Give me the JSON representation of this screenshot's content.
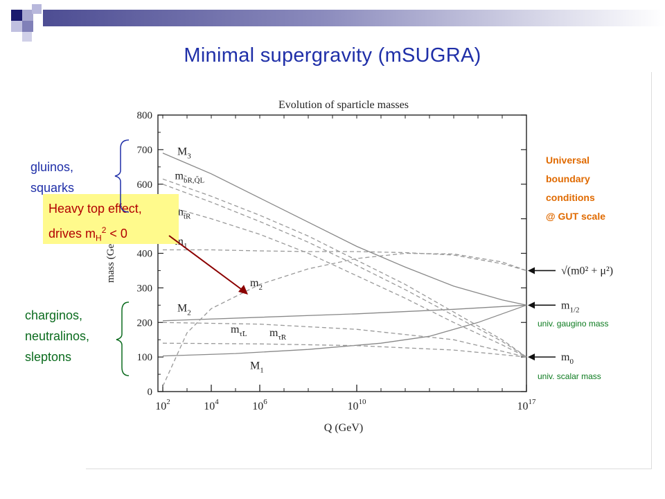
{
  "slide": {
    "title": "Minimal supergravity (mSUGRA)",
    "accent_color": "#1f2fa8"
  },
  "annotations": {
    "gluinos_line1": "gluinos,",
    "gluinos_line2": "squarks",
    "heavy_top_line1": "Heavy top effect,",
    "heavy_top_line2_pre": "drives m",
    "heavy_top_sub": "H",
    "heavy_top_sup": "2",
    "heavy_top_line2_post": " < 0",
    "charginos_line1": "charginos,",
    "charginos_line2": "neutralinos,",
    "charginos_line3": "sleptons",
    "universal_line1": "Universal",
    "universal_line2": "boundary",
    "universal_line3": "conditions",
    "universal_line4": "@ GUT scale",
    "gaugino_note": "univ. gaugino mass",
    "scalar_note": "univ. scalar mass"
  },
  "chart_data": {
    "type": "line",
    "title": "Evolution of sparticle masses",
    "xlabel": "Q (GeV)",
    "ylabel": "mass (GeV)",
    "x_scale": "log",
    "x_ticks": [
      {
        "value": 100,
        "base": "10",
        "exp": "2"
      },
      {
        "value": 10000,
        "base": "10",
        "exp": "4"
      },
      {
        "value": 1000000,
        "base": "10",
        "exp": "6"
      },
      {
        "value": 10000000000,
        "base": "10",
        "exp": "10"
      },
      {
        "value": 100000000000000000,
        "base": "10",
        "exp": "17"
      }
    ],
    "xlim_log10": [
      1.8,
      17.0
    ],
    "ylim": [
      0,
      800
    ],
    "y_ticks": [
      0,
      100,
      200,
      300,
      400,
      500,
      600,
      700,
      800
    ],
    "grid": false,
    "series": [
      {
        "name": "M3",
        "style": "solid",
        "color": "#888888",
        "points": [
          [
            2,
            690
          ],
          [
            4,
            630
          ],
          [
            6,
            560
          ],
          [
            8,
            490
          ],
          [
            10,
            420
          ],
          [
            12,
            360
          ],
          [
            14,
            305
          ],
          [
            16,
            265
          ],
          [
            17,
            250
          ]
        ]
      },
      {
        "name": "M2",
        "style": "solid",
        "color": "#888888",
        "points": [
          [
            2,
            205
          ],
          [
            6,
            215
          ],
          [
            10,
            225
          ],
          [
            14,
            238
          ],
          [
            17,
            250
          ]
        ]
      },
      {
        "name": "M1",
        "style": "solid",
        "color": "#888888",
        "points": [
          [
            2,
            103
          ],
          [
            5,
            110
          ],
          [
            8,
            122
          ],
          [
            11,
            140
          ],
          [
            13,
            160
          ],
          [
            15,
            200
          ],
          [
            17,
            250
          ]
        ]
      },
      {
        "name": "m_bR,QL",
        "style": "dashed",
        "color": "#999999",
        "points": [
          [
            2,
            615
          ],
          [
            4,
            565
          ],
          [
            6,
            510
          ],
          [
            8,
            450
          ],
          [
            10,
            380
          ],
          [
            12,
            310
          ],
          [
            14,
            230
          ],
          [
            16,
            150
          ],
          [
            17,
            100
          ]
        ]
      },
      {
        "name": "m_bR,QL (2)",
        "style": "dashed",
        "color": "#999999",
        "points": [
          [
            2,
            600
          ],
          [
            4,
            548
          ],
          [
            6,
            492
          ],
          [
            8,
            432
          ],
          [
            10,
            365
          ],
          [
            12,
            295
          ],
          [
            14,
            220
          ],
          [
            16,
            145
          ],
          [
            17,
            100
          ]
        ]
      },
      {
        "name": "m_tR",
        "style": "dashed",
        "color": "#999999",
        "points": [
          [
            2,
            540
          ],
          [
            4,
            500
          ],
          [
            6,
            455
          ],
          [
            8,
            400
          ],
          [
            10,
            335
          ],
          [
            12,
            270
          ],
          [
            14,
            200
          ],
          [
            16,
            135
          ],
          [
            17,
            100
          ]
        ]
      },
      {
        "name": "m1",
        "style": "dashed",
        "color": "#999999",
        "points": [
          [
            2,
            410
          ],
          [
            4,
            410
          ],
          [
            6,
            407
          ],
          [
            8,
            405
          ],
          [
            10,
            405
          ],
          [
            12,
            402
          ],
          [
            14,
            395
          ],
          [
            16,
            370
          ],
          [
            17,
            350
          ]
        ]
      },
      {
        "name": "m2",
        "style": "dashed",
        "color": "#999999",
        "points": [
          [
            2,
            15
          ],
          [
            3,
            170
          ],
          [
            4,
            240
          ],
          [
            6,
            310
          ],
          [
            8,
            355
          ],
          [
            10,
            385
          ],
          [
            12,
            400
          ],
          [
            14,
            398
          ],
          [
            16,
            375
          ],
          [
            17,
            350
          ]
        ]
      },
      {
        "name": "m_tauL",
        "style": "dashed",
        "color": "#999999",
        "points": [
          [
            2,
            200
          ],
          [
            6,
            195
          ],
          [
            10,
            180
          ],
          [
            14,
            150
          ],
          [
            17,
            100
          ]
        ]
      },
      {
        "name": "m_tauR",
        "style": "dashed",
        "color": "#999999",
        "points": [
          [
            2,
            140
          ],
          [
            6,
            138
          ],
          [
            10,
            133
          ],
          [
            14,
            120
          ],
          [
            17,
            100
          ]
        ]
      }
    ],
    "curve_labels": [
      {
        "series": "M3",
        "base": "M",
        "sub": "3",
        "x": 2.6,
        "y": 685
      },
      {
        "series": "m_bR,QL",
        "base": "m",
        "sub": "b̃R,Q̃L",
        "x": 2.5,
        "y": 615
      },
      {
        "series": "m_tR",
        "base": "m",
        "sub": "t̃R",
        "x": 2.5,
        "y": 510
      },
      {
        "series": "m1",
        "base": "m",
        "sub": "1",
        "x": 2.5,
        "y": 425
      },
      {
        "series": "m2",
        "base": "m",
        "sub": "2",
        "x": 5.6,
        "y": 305
      },
      {
        "series": "M2",
        "base": "M",
        "sub": "2",
        "x": 2.6,
        "y": 232
      },
      {
        "series": "m_tauL",
        "base": "m",
        "sub": "τ̃L",
        "x": 4.8,
        "y": 170
      },
      {
        "series": "m_tauR",
        "base": "m",
        "sub": "τ̃R",
        "x": 6.4,
        "y": 160
      },
      {
        "series": "M1",
        "base": "M",
        "sub": "1",
        "x": 5.6,
        "y": 65
      }
    ],
    "boundary_markers": [
      {
        "label": "√(m0² + μ²)",
        "y": 350
      },
      {
        "label_base": "m",
        "label_sub": "1/2",
        "y": 250
      },
      {
        "label_base": "m",
        "label_sub": "0",
        "y": 100
      }
    ],
    "arrow_color": "#8b0000",
    "axis_color": "#222222"
  }
}
